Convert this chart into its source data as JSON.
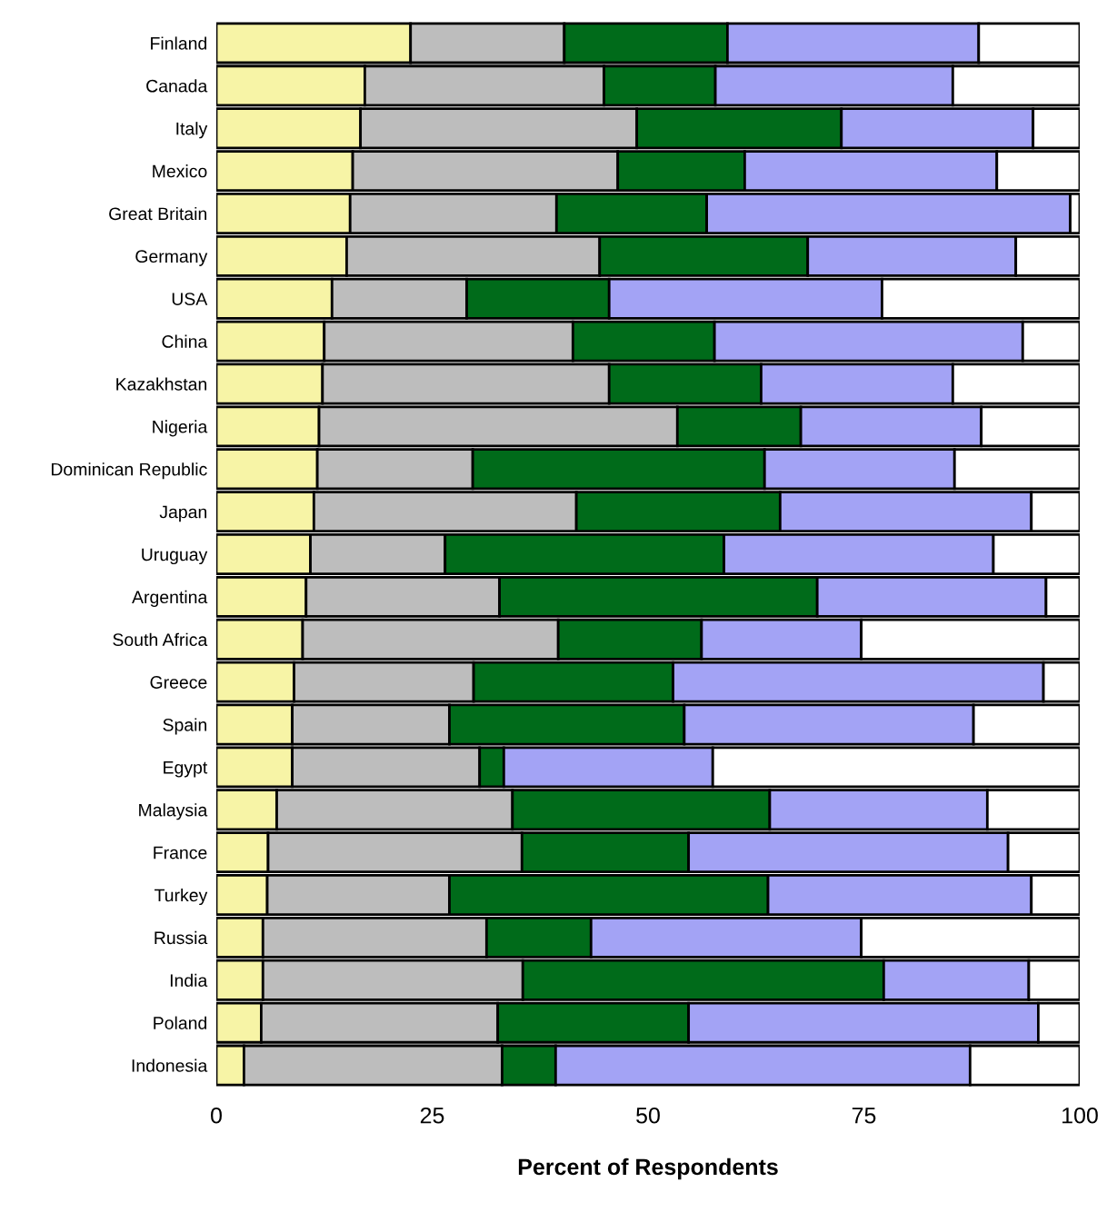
{
  "chart_data": {
    "type": "bar",
    "orientation": "horizontal",
    "stacked": true,
    "xlabel": "Percent of Respondents",
    "categories": [
      "Finland",
      "Canada",
      "Italy",
      "Mexico",
      "Great Britain",
      "Germany",
      "USA",
      "China",
      "Kazakhstan",
      "Nigeria",
      "Dominican Republic",
      "Japan",
      "Uruguay",
      "Argentina",
      "South Africa",
      "Greece",
      "Spain",
      "Egypt",
      "Malaysia",
      "France",
      "Turkey",
      "Russia",
      "India",
      "Poland",
      "Indonesia"
    ],
    "xlim": [
      0,
      100
    ],
    "xticks": [
      0,
      25,
      50,
      75,
      100
    ],
    "grid": false,
    "legend": false,
    "series": [
      {
        "color": "#f7f4a6",
        "values": [
          22.5,
          17.2,
          16.7,
          15.8,
          15.5,
          15.1,
          13.4,
          12.5,
          12.3,
          11.9,
          11.7,
          11.3,
          10.9,
          10.4,
          10.0,
          9.0,
          8.8,
          8.8,
          7.0,
          6.0,
          5.9,
          5.4,
          5.4,
          5.2,
          3.2
        ]
      },
      {
        "color": "#bdbdbd",
        "values": [
          17.8,
          27.7,
          32.0,
          30.7,
          23.9,
          29.3,
          15.6,
          28.8,
          33.2,
          41.5,
          18.0,
          30.4,
          15.6,
          22.4,
          29.6,
          20.8,
          18.2,
          21.7,
          27.3,
          29.4,
          21.1,
          25.9,
          30.1,
          27.4,
          29.9
        ]
      },
      {
        "color": "#006b1a",
        "values": [
          18.9,
          12.9,
          23.7,
          14.7,
          17.4,
          24.1,
          16.5,
          16.4,
          17.6,
          14.3,
          33.8,
          23.6,
          32.3,
          36.8,
          16.6,
          23.1,
          27.2,
          2.8,
          29.8,
          19.3,
          36.9,
          12.1,
          41.8,
          22.1,
          6.2
        ]
      },
      {
        "color": "#a3a3f5",
        "values": [
          29.1,
          27.5,
          22.2,
          29.2,
          42.1,
          24.1,
          31.6,
          35.7,
          22.2,
          20.9,
          22.0,
          29.1,
          31.2,
          26.5,
          18.5,
          42.9,
          33.5,
          24.2,
          25.2,
          37.0,
          30.5,
          31.3,
          16.8,
          40.5,
          48.0
        ]
      },
      {
        "color": "#ffffff",
        "values": [
          11.7,
          14.7,
          5.4,
          9.6,
          1.1,
          7.4,
          22.9,
          6.6,
          14.7,
          11.4,
          14.5,
          5.6,
          10.0,
          3.9,
          25.3,
          4.2,
          12.3,
          42.5,
          10.7,
          8.3,
          5.6,
          25.3,
          5.9,
          4.8,
          12.7
        ]
      }
    ]
  }
}
